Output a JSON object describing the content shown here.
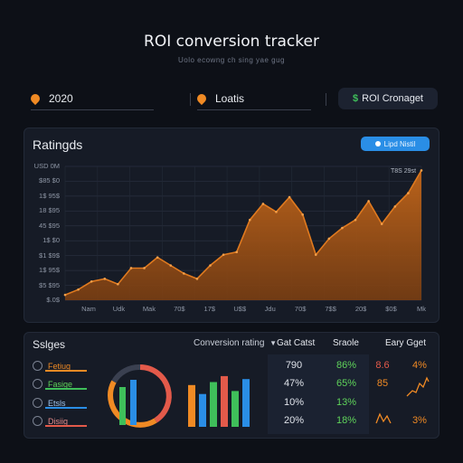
{
  "header": {
    "title": "ROI conversion tracker",
    "subtitle": "Uolo ecowng ch sing yae gug"
  },
  "filters": {
    "year": "2020",
    "location": "Loatis",
    "roi_button": "ROI Cronaget",
    "roi_icon": "$"
  },
  "chart_panel": {
    "title": "Ratingds",
    "badge": "Lipd Nistil",
    "peak_label": "T8S 29st",
    "y_ticks": [
      "USD 0M",
      "$85 $0",
      "1$ 95$",
      "18 $95",
      "45 $95",
      "1$ $0",
      "$1 $9$",
      "1$ 95$",
      "$5 $95",
      "$.0$"
    ],
    "x_ticks": [
      "Nam",
      "Udk",
      "Mak",
      "70$",
      "17$",
      "U$$",
      "Jdu",
      "70$",
      "7$$",
      "20$",
      "$0$",
      "Mk"
    ]
  },
  "chart_data": {
    "type": "area",
    "title": "Ratingds",
    "xlabel": "",
    "ylabel": "",
    "ylim": [
      0,
      100
    ],
    "grid": true,
    "color": "#e07a1f",
    "x": [
      0,
      1,
      2,
      3,
      4,
      5,
      6,
      7,
      8,
      9,
      10,
      11,
      12,
      13,
      14,
      15,
      16,
      17,
      18,
      19,
      20,
      21,
      22,
      23,
      24,
      25,
      26,
      27
    ],
    "values": [
      4,
      8,
      14,
      16,
      12,
      24,
      24,
      32,
      26,
      20,
      16,
      26,
      34,
      36,
      60,
      72,
      66,
      77,
      64,
      34,
      46,
      54,
      60,
      74,
      57,
      70,
      80,
      97
    ]
  },
  "bottom_panel": {
    "title": "Sslges",
    "dropdown": "Conversion rating",
    "columns": [
      "Gat Catst",
      "Sraole",
      "Eary Gget"
    ],
    "legend": [
      {
        "label": "Fetiug",
        "color": "#f08a24"
      },
      {
        "label": "Fasige",
        "color": "#3fbf5a"
      },
      {
        "label": "Etsls",
        "color": "#2a8ee6"
      },
      {
        "label": "Disiig",
        "color": "#e35a4a"
      }
    ],
    "rows": [
      {
        "cost": "790",
        "scale": "86%",
        "early": "8.6",
        "early2": "4%"
      },
      {
        "cost": "47%",
        "scale": "65%",
        "early": "85",
        "early2": ""
      },
      {
        "cost": "10%",
        "scale": "13%",
        "early": "",
        "early2": ""
      },
      {
        "cost": "20%",
        "scale": "18%",
        "early": "",
        "early2": "3%"
      }
    ]
  },
  "mini_bars": {
    "values": [
      70,
      55,
      75,
      85,
      60,
      80
    ],
    "colors": [
      "#f08a24",
      "#2a8ee6",
      "#3fbf5a",
      "#e35a4a",
      "#3fbf5a",
      "#2a8ee6"
    ]
  }
}
